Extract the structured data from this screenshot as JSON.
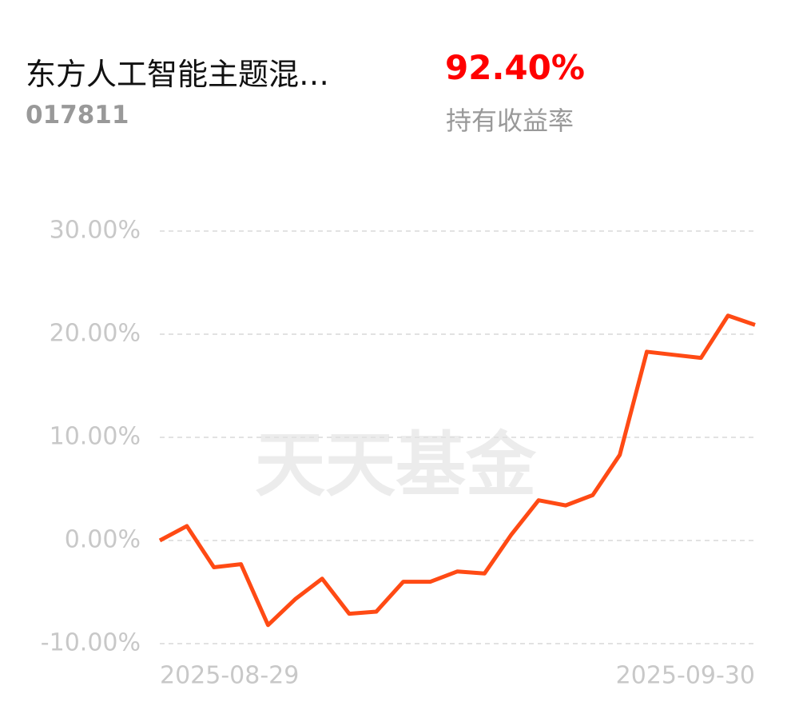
{
  "header": {
    "fund_name": "东方人工智能主题混…",
    "fund_code": "017811",
    "return_value": "92.40%",
    "return_label": "持有收益率"
  },
  "watermark": "天天基金",
  "chart_data": {
    "type": "line",
    "categories": [
      "2025-08-29",
      null,
      null,
      null,
      null,
      null,
      null,
      null,
      null,
      null,
      null,
      null,
      null,
      null,
      null,
      null,
      null,
      null,
      null,
      null,
      null,
      null,
      "2025-09-30"
    ],
    "series": [
      {
        "color": "#ff4a14",
        "values": [
          0.0,
          1.4,
          -2.6,
          -2.3,
          -8.2,
          -5.7,
          -3.7,
          -7.1,
          -6.9,
          -4.0,
          -4.0,
          -3.0,
          -3.2,
          0.6,
          3.9,
          3.4,
          4.4,
          8.3,
          18.3,
          18.0,
          17.7,
          21.8,
          20.9
        ]
      }
    ],
    "ylim": [
      -10,
      30
    ],
    "yticks": [
      {
        "value": -10,
        "label": "-10.00%"
      },
      {
        "value": 0,
        "label": "0.00%"
      },
      {
        "value": 10,
        "label": "10.00%"
      },
      {
        "value": 20,
        "label": "20.00%"
      },
      {
        "value": 30,
        "label": "30.00%"
      }
    ],
    "grid": true
  }
}
